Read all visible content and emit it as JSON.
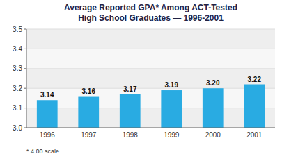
{
  "chart_data": {
    "type": "bar",
    "title": "Average Reported GPA* Among ACT-Tested\nHigh School Graduates — 1996-2001",
    "annotations": [
      "* 4.00 scale"
    ],
    "categories": [
      "1996",
      "1997",
      "1998",
      "1999",
      "2000",
      "2001"
    ],
    "values": [
      3.14,
      3.16,
      3.17,
      3.19,
      3.2,
      3.22
    ],
    "value_labels": [
      "3.14",
      "3.16",
      "3.17",
      "3.19",
      "3.20",
      "3.22"
    ],
    "color": "#29abe2",
    "ylim": [
      3.0,
      3.5
    ],
    "yticks": [
      {
        "value": 3.0,
        "label": "3.0"
      },
      3.1,
      3.2,
      3.3,
      3.4,
      3.5
    ],
    "grid": true,
    "data_labels": true
  }
}
